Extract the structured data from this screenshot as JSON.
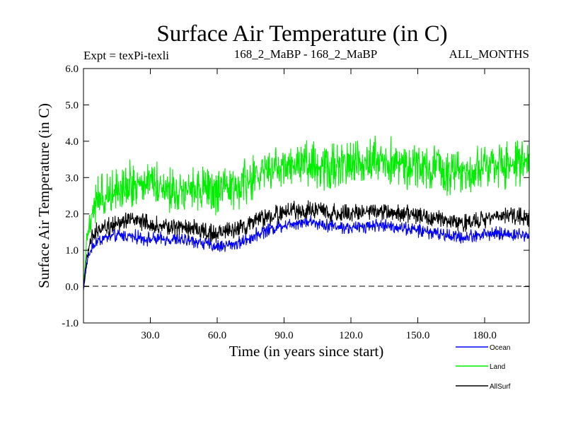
{
  "chart_data": {
    "type": "line",
    "title": "Surface Air Temperature (in C)",
    "subtitle_left": "Expt = texPi-texli",
    "subtitle_center": "168_2_MaBP - 168_2_MaBP",
    "subtitle_right": "ALL_MONTHS",
    "xlabel": "Time (in years since start)",
    "ylabel": "Surface Air Temperature (in C)",
    "xlim": [
      0,
      200
    ],
    "ylim": [
      -1.0,
      6.0
    ],
    "x_ticks": [
      30,
      60,
      90,
      120,
      150,
      180
    ],
    "x_tick_labels": [
      "30.0",
      "60.0",
      "90.0",
      "120.0",
      "150.0",
      "180.0"
    ],
    "y_ticks": [
      -1,
      0,
      1,
      2,
      3,
      4,
      5,
      6
    ],
    "y_tick_labels": [
      "-1.0",
      "0.0",
      "1.0",
      "2.0",
      "3.0",
      "4.0",
      "5.0",
      "6.0"
    ],
    "zero_line": "dashed",
    "legend_position": "bottom-right, below plot",
    "series": [
      {
        "name": "Ocean",
        "color": "#0000ff",
        "x": [
          0,
          1,
          2,
          4,
          6,
          10,
          15,
          20,
          30,
          40,
          50,
          60,
          70,
          80,
          90,
          100,
          110,
          120,
          130,
          140,
          150,
          160,
          170,
          180,
          190,
          200
        ],
        "values": [
          -0.1,
          0.4,
          0.8,
          1.1,
          1.25,
          1.35,
          1.4,
          1.4,
          1.3,
          1.3,
          1.25,
          1.1,
          1.2,
          1.5,
          1.7,
          1.8,
          1.7,
          1.6,
          1.7,
          1.65,
          1.55,
          1.45,
          1.35,
          1.45,
          1.45,
          1.4
        ],
        "noise_amplitude": 0.22
      },
      {
        "name": "Land",
        "color": "#00ee00",
        "x": [
          0,
          1,
          2,
          4,
          6,
          10,
          15,
          20,
          30,
          40,
          50,
          60,
          70,
          80,
          90,
          100,
          110,
          120,
          130,
          140,
          150,
          160,
          170,
          180,
          190,
          200
        ],
        "values": [
          0.0,
          0.9,
          1.6,
          2.1,
          2.4,
          2.5,
          2.8,
          2.8,
          2.9,
          2.65,
          2.7,
          2.55,
          2.75,
          3.1,
          3.3,
          3.4,
          3.3,
          3.35,
          3.55,
          3.4,
          3.3,
          3.2,
          3.15,
          3.35,
          3.4,
          3.35
        ],
        "noise_amplitude": 0.75
      },
      {
        "name": "AllSurf",
        "color": "#000000",
        "x": [
          0,
          1,
          2,
          4,
          6,
          10,
          15,
          20,
          30,
          40,
          50,
          60,
          70,
          80,
          90,
          100,
          110,
          120,
          130,
          140,
          150,
          160,
          170,
          180,
          190,
          200
        ],
        "values": [
          -0.05,
          0.55,
          1.0,
          1.35,
          1.55,
          1.65,
          1.75,
          1.85,
          1.7,
          1.65,
          1.6,
          1.45,
          1.6,
          1.85,
          2.05,
          2.1,
          2.05,
          2.0,
          2.1,
          2.05,
          1.95,
          1.85,
          1.75,
          1.85,
          1.95,
          1.9
        ],
        "noise_amplitude": 0.3
      }
    ]
  }
}
